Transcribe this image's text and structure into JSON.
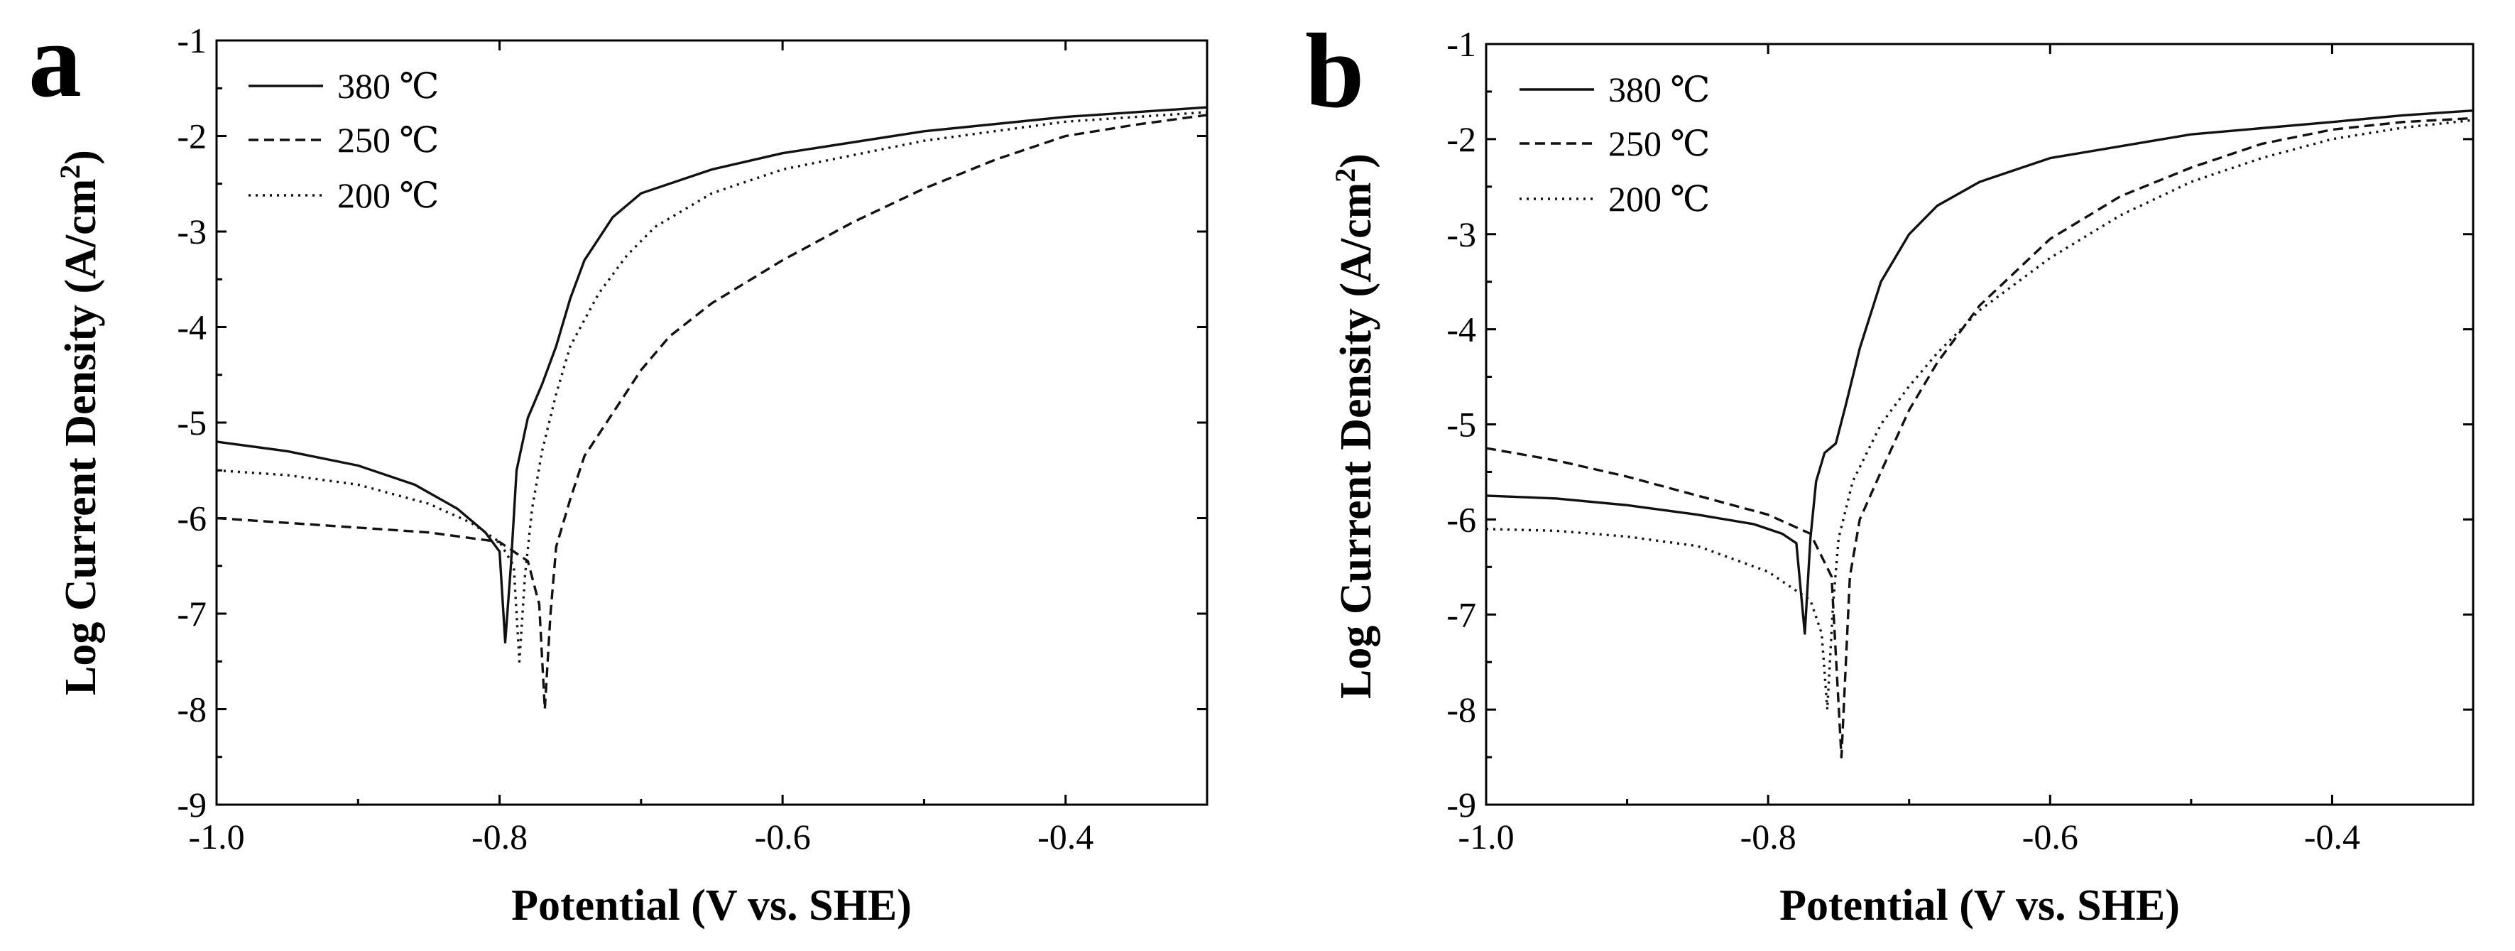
{
  "chart_data": [
    {
      "panel_label": "a",
      "type": "line",
      "xlabel": "Potential (V vs. SHE)",
      "ylabel": "Log Current Density (A/cm",
      "ylabel_sup": "2",
      "ylabel_close": ")",
      "xlim": [
        -1.0,
        -0.3
      ],
      "ylim": [
        -9,
        -1
      ],
      "xticks": [
        -1.0,
        -0.8,
        -0.6,
        -0.4
      ],
      "xtick_labels": [
        "-1.0",
        "-0.8",
        "-0.6",
        "-0.4"
      ],
      "yticks": [
        -9,
        -8,
        -7,
        -6,
        -5,
        -4,
        -3,
        -2,
        -1
      ],
      "ytick_labels": [
        "-9",
        "-8",
        "-7",
        "-6",
        "-5",
        "-4",
        "-3",
        "-2",
        "-1"
      ],
      "legend_position": "top-left",
      "series": [
        {
          "name": "380 ℃",
          "style": "solid",
          "points": [
            [
              -1.0,
              -5.2
            ],
            [
              -0.95,
              -5.3
            ],
            [
              -0.9,
              -5.45
            ],
            [
              -0.86,
              -5.65
            ],
            [
              -0.83,
              -5.9
            ],
            [
              -0.81,
              -6.15
            ],
            [
              -0.8,
              -6.35
            ],
            [
              -0.796,
              -7.3
            ],
            [
              -0.792,
              -6.5
            ],
            [
              -0.788,
              -5.5
            ],
            [
              -0.78,
              -4.95
            ],
            [
              -0.77,
              -4.6
            ],
            [
              -0.76,
              -4.2
            ],
            [
              -0.75,
              -3.7
            ],
            [
              -0.74,
              -3.3
            ],
            [
              -0.72,
              -2.85
            ],
            [
              -0.7,
              -2.6
            ],
            [
              -0.65,
              -2.35
            ],
            [
              -0.6,
              -2.18
            ],
            [
              -0.5,
              -1.95
            ],
            [
              -0.4,
              -1.8
            ],
            [
              -0.3,
              -1.7
            ]
          ]
        },
        {
          "name": "250 ℃",
          "style": "dashed",
          "points": [
            [
              -1.0,
              -6.0
            ],
            [
              -0.95,
              -6.05
            ],
            [
              -0.9,
              -6.1
            ],
            [
              -0.85,
              -6.15
            ],
            [
              -0.8,
              -6.25
            ],
            [
              -0.78,
              -6.45
            ],
            [
              -0.772,
              -6.9
            ],
            [
              -0.768,
              -8.0
            ],
            [
              -0.764,
              -7.0
            ],
            [
              -0.76,
              -6.3
            ],
            [
              -0.75,
              -5.8
            ],
            [
              -0.74,
              -5.35
            ],
            [
              -0.72,
              -4.9
            ],
            [
              -0.7,
              -4.45
            ],
            [
              -0.68,
              -4.1
            ],
            [
              -0.65,
              -3.75
            ],
            [
              -0.6,
              -3.3
            ],
            [
              -0.55,
              -2.9
            ],
            [
              -0.5,
              -2.55
            ],
            [
              -0.45,
              -2.25
            ],
            [
              -0.4,
              -2.0
            ],
            [
              -0.35,
              -1.88
            ],
            [
              -0.3,
              -1.78
            ]
          ]
        },
        {
          "name": "200 ℃",
          "style": "dotted",
          "points": [
            [
              -1.0,
              -5.5
            ],
            [
              -0.95,
              -5.55
            ],
            [
              -0.9,
              -5.65
            ],
            [
              -0.85,
              -5.85
            ],
            [
              -0.82,
              -6.05
            ],
            [
              -0.8,
              -6.25
            ],
            [
              -0.79,
              -6.5
            ],
            [
              -0.786,
              -7.5
            ],
            [
              -0.782,
              -6.6
            ],
            [
              -0.777,
              -5.9
            ],
            [
              -0.77,
              -5.3
            ],
            [
              -0.76,
              -4.7
            ],
            [
              -0.75,
              -4.2
            ],
            [
              -0.73,
              -3.65
            ],
            [
              -0.71,
              -3.25
            ],
            [
              -0.69,
              -2.95
            ],
            [
              -0.65,
              -2.6
            ],
            [
              -0.6,
              -2.35
            ],
            [
              -0.5,
              -2.05
            ],
            [
              -0.4,
              -1.85
            ],
            [
              -0.3,
              -1.75
            ]
          ]
        }
      ]
    },
    {
      "panel_label": "b",
      "type": "line",
      "xlabel": "Potential (V vs. SHE)",
      "ylabel": "Log Current Density (A/cm",
      "ylabel_sup": "2",
      "ylabel_close": ")",
      "xlim": [
        -1.0,
        -0.3
      ],
      "ylim": [
        -9,
        -1
      ],
      "xticks": [
        -1.0,
        -0.8,
        -0.6,
        -0.4
      ],
      "xtick_labels": [
        "-1.0",
        "-0.8",
        "-0.6",
        "-0.4"
      ],
      "yticks": [
        -9,
        -8,
        -7,
        -6,
        -5,
        -4,
        -3,
        -2,
        -1
      ],
      "ytick_labels": [
        "-9",
        "-8",
        "-7",
        "-6",
        "-5",
        "-4",
        "-3",
        "-2",
        "-1"
      ],
      "legend_position": "top-left",
      "series": [
        {
          "name": "380 ℃",
          "style": "solid",
          "points": [
            [
              -1.0,
              -5.75
            ],
            [
              -0.95,
              -5.78
            ],
            [
              -0.9,
              -5.85
            ],
            [
              -0.85,
              -5.95
            ],
            [
              -0.81,
              -6.05
            ],
            [
              -0.79,
              -6.15
            ],
            [
              -0.78,
              -6.25
            ],
            [
              -0.774,
              -7.2
            ],
            [
              -0.77,
              -6.2
            ],
            [
              -0.766,
              -5.6
            ],
            [
              -0.76,
              -5.3
            ],
            [
              -0.752,
              -5.2
            ],
            [
              -0.745,
              -4.8
            ],
            [
              -0.735,
              -4.2
            ],
            [
              -0.72,
              -3.5
            ],
            [
              -0.7,
              -3.0
            ],
            [
              -0.68,
              -2.7
            ],
            [
              -0.65,
              -2.45
            ],
            [
              -0.6,
              -2.2
            ],
            [
              -0.5,
              -1.95
            ],
            [
              -0.4,
              -1.82
            ],
            [
              -0.35,
              -1.75
            ],
            [
              -0.3,
              -1.7
            ]
          ]
        },
        {
          "name": "250 ℃",
          "style": "dashed",
          "points": [
            [
              -1.0,
              -5.25
            ],
            [
              -0.95,
              -5.38
            ],
            [
              -0.9,
              -5.55
            ],
            [
              -0.85,
              -5.75
            ],
            [
              -0.8,
              -5.95
            ],
            [
              -0.77,
              -6.15
            ],
            [
              -0.755,
              -6.6
            ],
            [
              -0.748,
              -8.5
            ],
            [
              -0.742,
              -6.6
            ],
            [
              -0.735,
              -6.0
            ],
            [
              -0.72,
              -5.5
            ],
            [
              -0.7,
              -4.85
            ],
            [
              -0.68,
              -4.35
            ],
            [
              -0.65,
              -3.75
            ],
            [
              -0.6,
              -3.05
            ],
            [
              -0.55,
              -2.6
            ],
            [
              -0.5,
              -2.3
            ],
            [
              -0.45,
              -2.05
            ],
            [
              -0.4,
              -1.9
            ],
            [
              -0.35,
              -1.82
            ],
            [
              -0.3,
              -1.78
            ]
          ]
        },
        {
          "name": "200 ℃",
          "style": "dotted",
          "points": [
            [
              -1.0,
              -6.1
            ],
            [
              -0.95,
              -6.12
            ],
            [
              -0.9,
              -6.18
            ],
            [
              -0.85,
              -6.28
            ],
            [
              -0.8,
              -6.55
            ],
            [
              -0.77,
              -6.85
            ],
            [
              -0.762,
              -7.2
            ],
            [
              -0.758,
              -8.0
            ],
            [
              -0.754,
              -6.9
            ],
            [
              -0.75,
              -6.2
            ],
            [
              -0.74,
              -5.6
            ],
            [
              -0.72,
              -5.0
            ],
            [
              -0.7,
              -4.6
            ],
            [
              -0.68,
              -4.25
            ],
            [
              -0.65,
              -3.8
            ],
            [
              -0.6,
              -3.25
            ],
            [
              -0.55,
              -2.8
            ],
            [
              -0.5,
              -2.45
            ],
            [
              -0.45,
              -2.2
            ],
            [
              -0.4,
              -2.0
            ],
            [
              -0.35,
              -1.88
            ],
            [
              -0.3,
              -1.8
            ]
          ]
        }
      ]
    }
  ]
}
